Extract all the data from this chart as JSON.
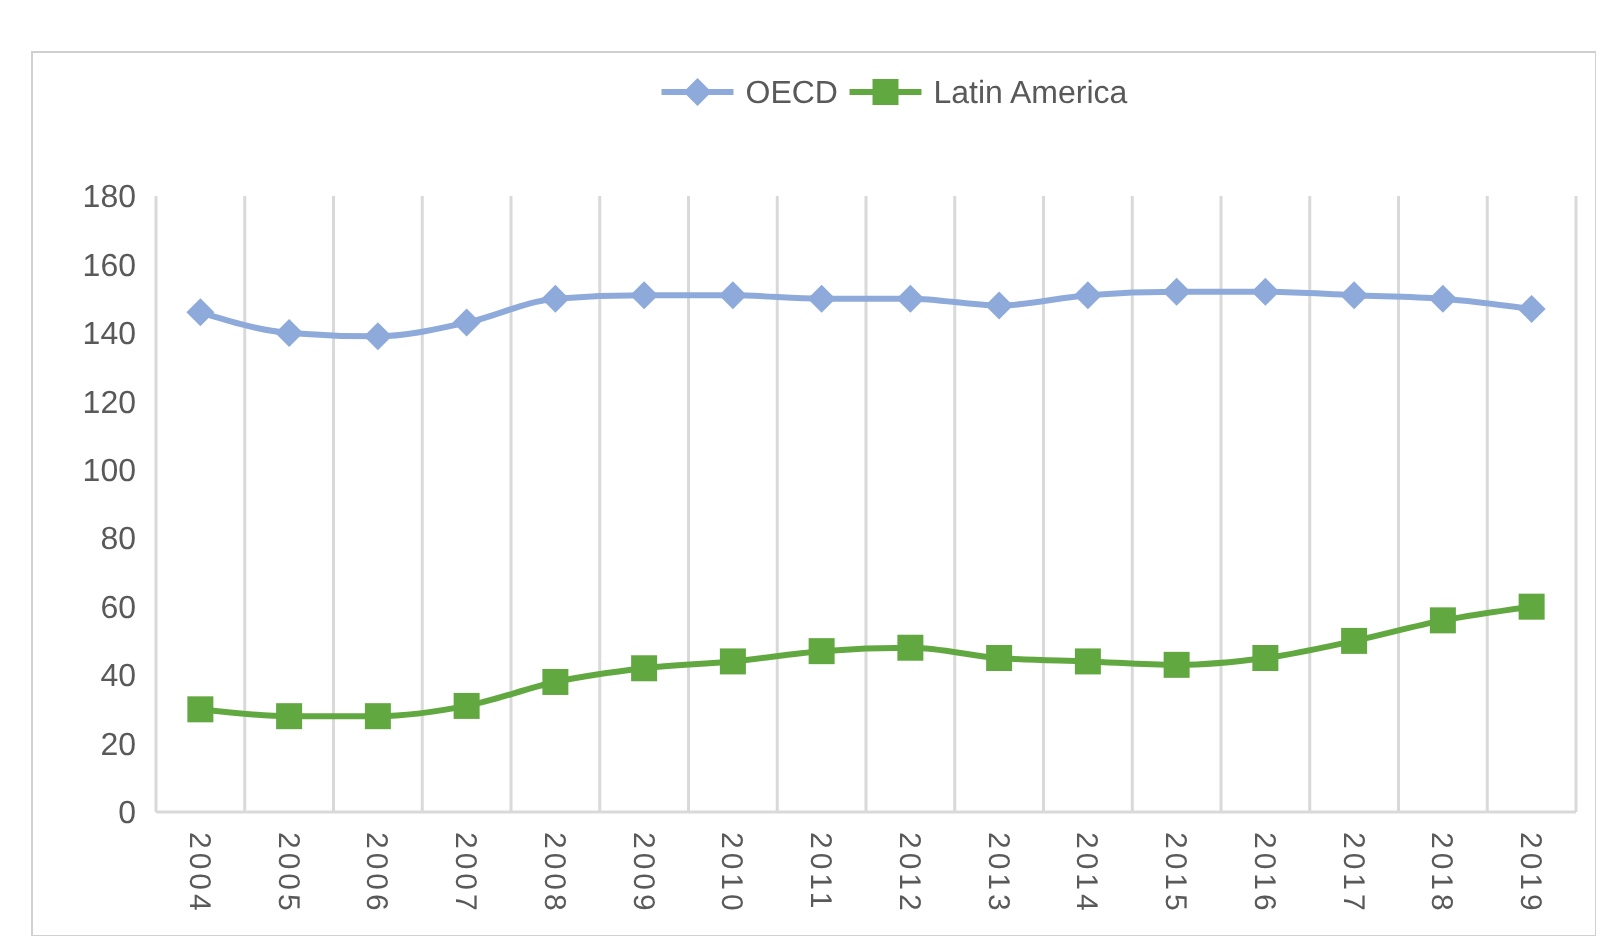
{
  "chart_data": {
    "type": "line",
    "categories": [
      "2004",
      "2005",
      "2006",
      "2007",
      "2008",
      "2009",
      "2010",
      "2011",
      "2012",
      "2013",
      "2014",
      "2015",
      "2016",
      "2017",
      "2018",
      "2019"
    ],
    "series": [
      {
        "name": "OECD",
        "color": "#8eaadb",
        "marker": "diamond",
        "values": [
          146,
          140,
          139,
          143,
          150,
          151,
          151,
          150,
          150,
          148,
          151,
          152,
          152,
          151,
          150,
          147
        ]
      },
      {
        "name": "Latin America",
        "color": "#62a840",
        "marker": "square",
        "values": [
          30,
          28,
          28,
          31,
          38,
          42,
          44,
          47,
          48,
          45,
          44,
          43,
          45,
          50,
          56,
          60
        ]
      }
    ],
    "ylim": [
      0,
      180
    ],
    "yticks": [
      0,
      20,
      40,
      60,
      80,
      100,
      120,
      140,
      160,
      180
    ],
    "grid": "x",
    "legend": "top"
  }
}
